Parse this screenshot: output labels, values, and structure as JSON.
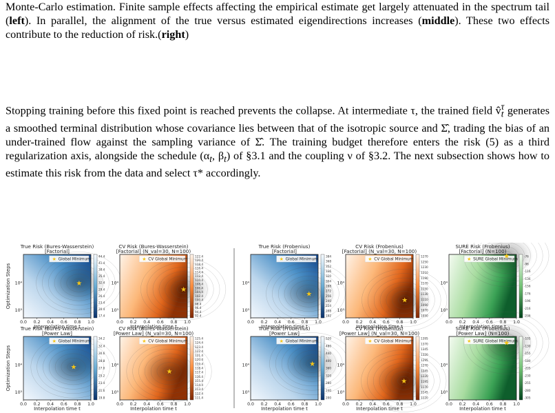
{
  "caption": {
    "line1": "Monte-Carlo estimation. Finite sample effects affecting the empirical estimate get largely attenuated",
    "line2_pre": "in the spectrum tail (",
    "left": "left",
    "line2_post": "). In parallel, the alignment of the true versus estimated eigendirections",
    "line3_pre": "increases (",
    "middle": "middle",
    "line3_mid": "). These two effects contribute to the reduction of risk.(",
    "right": "right",
    "line3_post": ")"
  },
  "paragraph": {
    "s1": "Stopping training before this fixed point is reached prevents the collapse. At intermediate τ, the trained field v̂",
    "s1b": " generates a smoothed terminal distribution whose covariance lies between that of the isotropic source and Σ̂, trading the bias of an under-trained flow against the sampling variance of Σ̂. The training budget therefore enters the risk (5) as a third regularization axis, alongside the schedule (α",
    "s2": ", β",
    "s3": ") of §3.1 and the coupling ν of §3.2. The next subsection shows how to estimate this risk from the data and select τ* accordingly.",
    "sub_t": "t",
    "sup_tau": "τ"
  },
  "figure": {
    "ylabel": "Optimization Steps",
    "xlabel": "Interpolation time t",
    "xticks": [
      "0.0",
      "0.2",
      "0.4",
      "0.6",
      "0.8",
      "1.0"
    ],
    "yticks": [
      "10⁴",
      "10³"
    ],
    "rows": [
      [
        {
          "title1": "True Risk (Bures-Wasserstein)",
          "title2": "[Factorial]",
          "legend": "Global Minimum",
          "cmap": "blue",
          "opt": [
            0.82,
            0.45
          ],
          "cbar": [
            "44.4",
            "41.4",
            "38.4",
            "35.4",
            "32.4",
            "29.4",
            "26.4",
            "23.4",
            "20.4",
            "17.4"
          ]
        },
        {
          "title1": "CV Risk (Bures-Wasserstein)",
          "title2": "[Factorial] (N_val=30, N=100)",
          "legend": "CV Global Minimum",
          "cmap": "orange",
          "opt": [
            0.94,
            0.55
          ],
          "cbar": [
            "122.4",
            "120.4",
            "118.4",
            "116.4",
            "114.4",
            "112.4",
            "110.4",
            "108.4",
            "106.4",
            "104.4",
            "102.4",
            "100.4",
            "98.4",
            "96.4",
            "94.4",
            "92.4"
          ]
        },
        {
          "title1": "True Risk (Frobenius)",
          "title2": "[Factorial]",
          "legend": "Global Minimum",
          "cmap": "blue",
          "opt": [
            0.86,
            0.62
          ],
          "cbar": [
            "384",
            "368",
            "352",
            "336",
            "320",
            "304",
            "288",
            "272",
            "256",
            "240",
            "224",
            "208",
            "192"
          ]
        },
        {
          "title1": "CV Risk (Frobenius)",
          "title2": "[Factorial] (N_val=30, N=100)",
          "legend": "CV Global Minimum",
          "cmap": "orange",
          "opt": [
            0.87,
            0.72
          ],
          "cbar": [
            "1270",
            "1250",
            "1230",
            "1210",
            "1190",
            "1170",
            "1150",
            "1130",
            "1110",
            "1090",
            "1070",
            "1050"
          ]
        },
        {
          "title1": "SURE Risk (Frobenius)",
          "title2": "[Factorial] (N=100)",
          "legend": "SURE Global Minimum",
          "cmap": "green",
          "opt": [
            0.85,
            0.02
          ],
          "cbar": [
            "-76",
            "-96",
            "-116",
            "-136",
            "-156",
            "-176",
            "-196",
            "-216",
            "-236"
          ]
        }
      ],
      [
        {
          "title1": "True Risk (Bures-Wasserstein)",
          "title2": "[Power Law]",
          "legend": "Global Minimum",
          "cmap": "blue",
          "opt": [
            0.74,
            0.48
          ],
          "cbar": [
            "34.2",
            "32.4",
            "30.6",
            "28.8",
            "27.0",
            "25.2",
            "23.4",
            "21.6",
            "19.8"
          ]
        },
        {
          "title1": "CV Risk (Bures-Wasserstein)",
          "title2": "[Power Law] (N_val=30, N=100)",
          "legend": "CV Global Minimum",
          "cmap": "orange",
          "opt": [
            0.73,
            0.55
          ],
          "cbar": [
            "125.4",
            "124.4",
            "123.4",
            "122.4",
            "121.4",
            "120.4",
            "119.4",
            "118.4",
            "117.4",
            "116.4",
            "115.4",
            "114.4",
            "113.4",
            "112.4",
            "111.4"
          ]
        },
        {
          "title1": "True Risk (Frobenius)",
          "title2": "[Power Law]",
          "legend": "Global Minimum",
          "cmap": "blue",
          "opt": [
            0.91,
            0.43
          ],
          "cbar": [
            "520",
            "480",
            "440",
            "400",
            "360",
            "320",
            "280",
            "240",
            "200"
          ]
        },
        {
          "title1": "CV Risk (Frobenius)",
          "title2": "[Power Law] (N_val=30, N=100)",
          "legend": "CV Global Minimum",
          "cmap": "orange",
          "opt": [
            0.86,
            0.7
          ],
          "cbar": [
            "1395",
            "1370",
            "1345",
            "1320",
            "1295",
            "1270",
            "1245",
            "1220",
            "1195",
            "1170",
            "1145",
            "1120"
          ]
        },
        {
          "title1": "SURE Risk (Frobenius)",
          "title2": "[Power Law] (N=100)",
          "legend": "SURE Global Minimum",
          "cmap": "green",
          "opt": [
            0.85,
            0.1
          ],
          "cbar": [
            "-105",
            "-130",
            "-155",
            "-180",
            "-205",
            "-230",
            "-255",
            "-280",
            "-305"
          ]
        }
      ]
    ]
  }
}
